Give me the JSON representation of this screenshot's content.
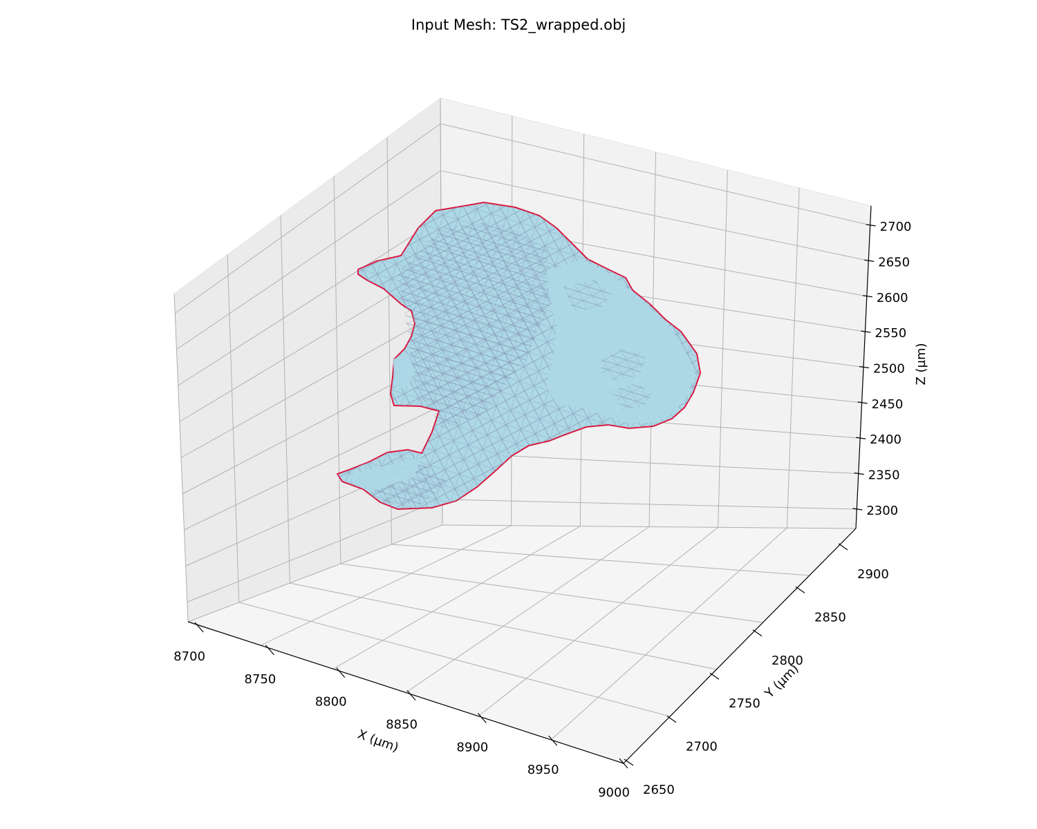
{
  "chart_data": {
    "type": "surface3d",
    "title": "Input Mesh: TS2_wrapped.obj",
    "xlabel": "X (µm)",
    "ylabel": "Y (µm)",
    "zlabel": "Z (µm)",
    "xlim": [
      8700,
      9000
    ],
    "ylim": [
      2650,
      2900
    ],
    "zlim": [
      2300,
      2700
    ],
    "x_ticks": [
      "8700",
      "8750",
      "8800",
      "8850",
      "8900",
      "8950",
      "9000"
    ],
    "y_ticks": [
      "2650",
      "2700",
      "2750",
      "2800",
      "2850",
      "2900"
    ],
    "z_ticks": [
      "2300",
      "2350",
      "2400",
      "2450",
      "2500",
      "2550",
      "2600",
      "2650",
      "2700"
    ],
    "grid": true,
    "colors": {
      "surface": "#add8e6",
      "wireframe": "#8a9bb8",
      "edge": "#dc143c",
      "pane_left": "#ebebeb",
      "pane_back": "#f2f2f2",
      "pane_floor": "#f5f5f5",
      "grid": "#b0b0b0"
    }
  }
}
